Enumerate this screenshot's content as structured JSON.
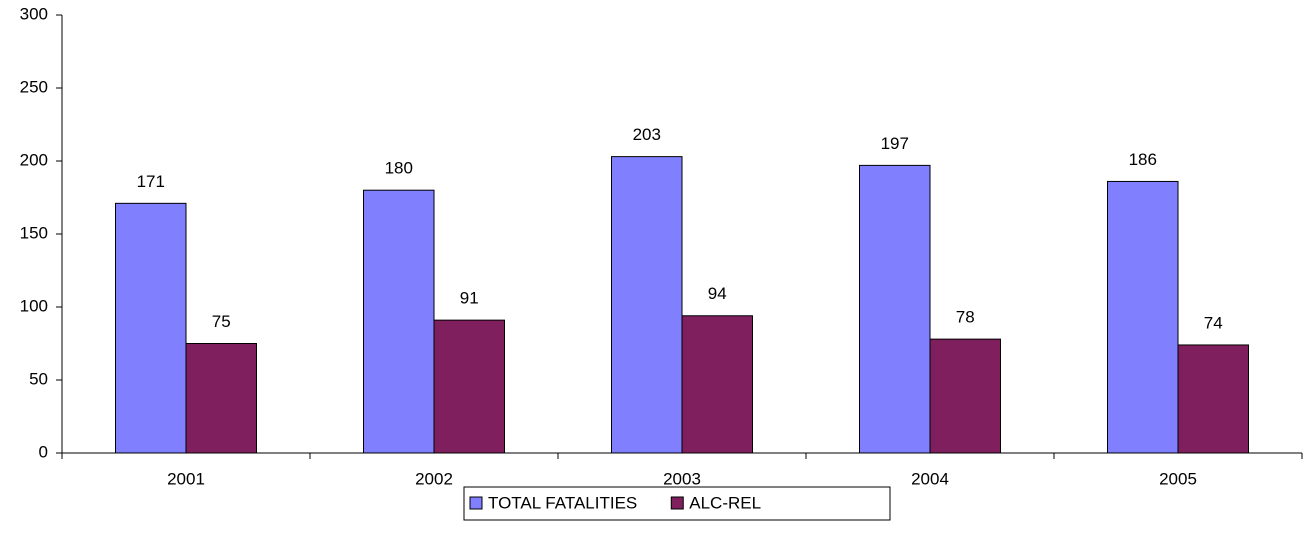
{
  "chart_data": {
    "type": "bar",
    "categories": [
      "2001",
      "2002",
      "2003",
      "2004",
      "2005"
    ],
    "series": [
      {
        "name": "TOTAL FATALITIES",
        "color": "#8080ff",
        "values": [
          171,
          180,
          203,
          197,
          186
        ]
      },
      {
        "name": "ALC-REL",
        "color": "#801f5e",
        "values": [
          75,
          91,
          94,
          78,
          74
        ]
      }
    ],
    "ylim": [
      0,
      300
    ],
    "yticks": [
      0,
      50,
      100,
      150,
      200,
      250,
      300
    ],
    "grid": false,
    "legend": "bottom"
  }
}
